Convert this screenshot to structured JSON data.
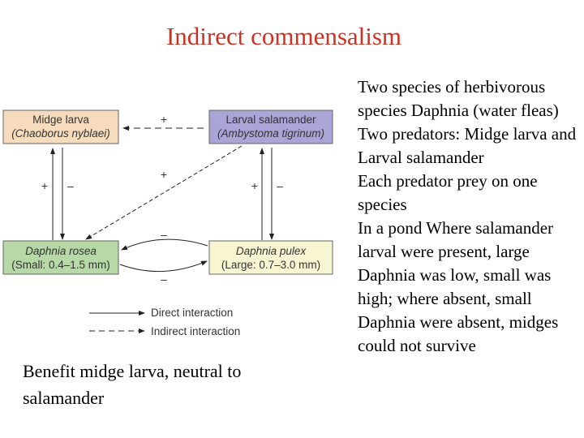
{
  "title": "Indirect commensalism",
  "diagram": {
    "nodes": [
      {
        "name": "Midge larva",
        "species": "(Chaoborus nyblaei)",
        "color": "#f6dcbc"
      },
      {
        "name": "Larval salamander",
        "species": "(Ambystoma tigrinum)",
        "color": "#a9a5d6"
      },
      {
        "name": "Daphnia rosea",
        "size": "(Small: 0.4–1.5 mm)",
        "color": "#b7d8a7"
      },
      {
        "name": "Daphnia pulex",
        "size": "(Large: 0.7–3.0 mm)",
        "color": "#f8f6d2"
      }
    ],
    "signs": {
      "plus": "+",
      "minus": "–"
    },
    "legend": {
      "direct": "Direct interaction",
      "indirect": "Indirect interaction"
    }
  },
  "caption": "Benefit midge larva, neutral to salamander",
  "bullets": [
    "Two species of herbivorous species Daphnia (water fleas)",
    "Two predators: Midge larva and Larval salamander",
    "Each predator prey on one species",
    "In a pond Where salamander larval were present, large Daphnia was low, small was high; where absent, small Daphnia were absent, midges could not survive"
  ]
}
